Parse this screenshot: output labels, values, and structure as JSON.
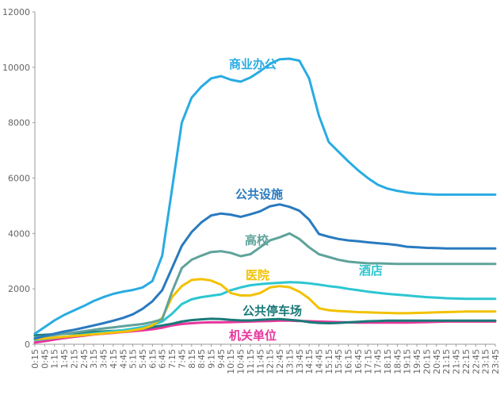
{
  "chart_data": {
    "type": "line",
    "title": "",
    "xlabel": "",
    "ylabel": "",
    "ylim": [
      0,
      12000
    ],
    "yticks": [
      0,
      2000,
      4000,
      6000,
      8000,
      10000,
      12000
    ],
    "grid": false,
    "legend": "inline labels",
    "x": [
      "0:15",
      "0:45",
      "1:15",
      "1:45",
      "2:15",
      "2:45",
      "3:15",
      "3:45",
      "4:15",
      "4:45",
      "5:15",
      "5:45",
      "6:15",
      "6:45",
      "7:15",
      "7:45",
      "8:15",
      "8:45",
      "9:15",
      "9:45",
      "10:15",
      "10:45",
      "11:15",
      "11:45",
      "12:15",
      "12:45",
      "13:15",
      "13:45",
      "14:15",
      "14:45",
      "15:15",
      "15:45",
      "16:15",
      "16:45",
      "17:15",
      "17:45",
      "18:15",
      "18:45",
      "19:15",
      "19:45",
      "20:15",
      "20:45",
      "21:15",
      "21:45",
      "22:15",
      "22:45",
      "23:15",
      "23:45"
    ],
    "series": [
      {
        "name": "商业办公",
        "color": "#29ABE2",
        "values": [
          380,
          620,
          860,
          1060,
          1220,
          1380,
          1560,
          1700,
          1820,
          1900,
          1960,
          2050,
          2280,
          3200,
          5600,
          8000,
          8900,
          9300,
          9600,
          9680,
          9550,
          9480,
          9630,
          9860,
          10120,
          10290,
          10310,
          10240,
          9600,
          8250,
          7300,
          6950,
          6600,
          6280,
          6000,
          5760,
          5620,
          5540,
          5480,
          5440,
          5420,
          5400,
          5400,
          5400,
          5400,
          5400,
          5400,
          5400
        ]
      },
      {
        "name": "公共设施",
        "color": "#2A7ABF",
        "values": [
          200,
          300,
          380,
          460,
          520,
          600,
          680,
          760,
          850,
          950,
          1080,
          1280,
          1550,
          1950,
          2750,
          3550,
          4050,
          4400,
          4650,
          4720,
          4680,
          4600,
          4690,
          4800,
          4980,
          5050,
          4960,
          4820,
          4500,
          3980,
          3880,
          3800,
          3750,
          3720,
          3680,
          3650,
          3620,
          3580,
          3520,
          3500,
          3480,
          3470,
          3460,
          3460,
          3460,
          3460,
          3460,
          3460
        ]
      },
      {
        "name": "高校",
        "color": "#5FA39B",
        "values": [
          250,
          290,
          330,
          380,
          420,
          470,
          520,
          570,
          610,
          650,
          690,
          730,
          800,
          900,
          1900,
          2750,
          3050,
          3200,
          3330,
          3360,
          3300,
          3180,
          3250,
          3500,
          3750,
          3860,
          4000,
          3800,
          3500,
          3250,
          3150,
          3050,
          2980,
          2950,
          2920,
          2920,
          2910,
          2900,
          2900,
          2900,
          2900,
          2900,
          2900,
          2900,
          2900,
          2900,
          2900,
          2900
        ]
      },
      {
        "name": "医院",
        "color": "#F2C200",
        "values": [
          180,
          210,
          240,
          270,
          300,
          330,
          360,
          390,
          420,
          450,
          500,
          560,
          680,
          950,
          1700,
          2100,
          2320,
          2350,
          2300,
          2150,
          1850,
          1760,
          1760,
          1850,
          2050,
          2100,
          2060,
          1900,
          1650,
          1300,
          1230,
          1200,
          1180,
          1160,
          1150,
          1140,
          1130,
          1120,
          1120,
          1130,
          1140,
          1150,
          1160,
          1170,
          1180,
          1180,
          1180,
          1180
        ]
      },
      {
        "name": "酒店",
        "color": "#2CC6D1",
        "values": [
          150,
          190,
          230,
          270,
          310,
          350,
          390,
          430,
          470,
          510,
          560,
          620,
          700,
          820,
          1100,
          1450,
          1620,
          1700,
          1750,
          1800,
          1950,
          2050,
          2130,
          2170,
          2200,
          2220,
          2240,
          2230,
          2200,
          2150,
          2100,
          2060,
          2000,
          1950,
          1900,
          1860,
          1820,
          1790,
          1760,
          1730,
          1700,
          1680,
          1660,
          1650,
          1640,
          1640,
          1640,
          1640
        ]
      },
      {
        "name": "公共停车场",
        "color": "#1A7A78",
        "values": [
          320,
          340,
          360,
          380,
          400,
          420,
          440,
          460,
          480,
          500,
          520,
          560,
          620,
          680,
          740,
          820,
          870,
          900,
          920,
          910,
          880,
          860,
          860,
          880,
          900,
          910,
          880,
          850,
          800,
          770,
          760,
          770,
          790,
          810,
          830,
          840,
          850,
          850,
          850,
          850,
          850,
          850,
          850,
          850,
          850,
          850,
          850,
          850
        ]
      },
      {
        "name": "机关单位",
        "color": "#E8369C",
        "values": [
          60,
          110,
          170,
          220,
          270,
          310,
          350,
          380,
          410,
          440,
          470,
          500,
          540,
          600,
          680,
          730,
          760,
          780,
          790,
          790,
          800,
          810,
          820,
          830,
          840,
          850,
          850,
          840,
          830,
          820,
          810,
          800,
          790,
          780,
          780,
          780,
          780,
          780,
          780,
          790,
          800,
          810,
          820,
          820,
          820,
          820,
          820,
          820
        ]
      }
    ],
    "annotations": [
      "商业办公",
      "公共设施",
      "高校",
      "医院",
      "酒店",
      "公共停车场",
      "机关单位"
    ]
  }
}
